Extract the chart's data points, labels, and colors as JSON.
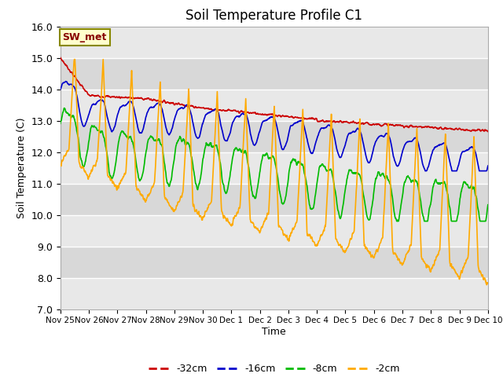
{
  "title": "Soil Temperature Profile C1",
  "xlabel": "Time",
  "ylabel": "Soil Temperature (C)",
  "ylim": [
    7.0,
    16.0
  ],
  "yticks": [
    7.0,
    8.0,
    9.0,
    10.0,
    11.0,
    12.0,
    13.0,
    14.0,
    15.0,
    16.0
  ],
  "legend_labels": [
    "-32cm",
    "-16cm",
    "-8cm",
    "-2cm"
  ],
  "legend_colors": [
    "#cc0000",
    "#0000cc",
    "#00bb00",
    "#ffaa00"
  ],
  "annotation_text": "SW_met",
  "annotation_bg": "#ffffcc",
  "annotation_border": "#888800",
  "date_labels": [
    "Nov 25",
    "Nov 26",
    "Nov 27",
    "Nov 28",
    "Nov 29",
    "Nov 30",
    "Dec 1",
    "Dec 2",
    "Dec 3",
    "Dec 4",
    "Dec 5",
    "Dec 6",
    "Dec 7",
    "Dec 8",
    "Dec 9",
    "Dec 10"
  ],
  "band_colors": [
    "#e8e8e8",
    "#d8d8d8"
  ],
  "n_points": 1440,
  "seed": 7
}
